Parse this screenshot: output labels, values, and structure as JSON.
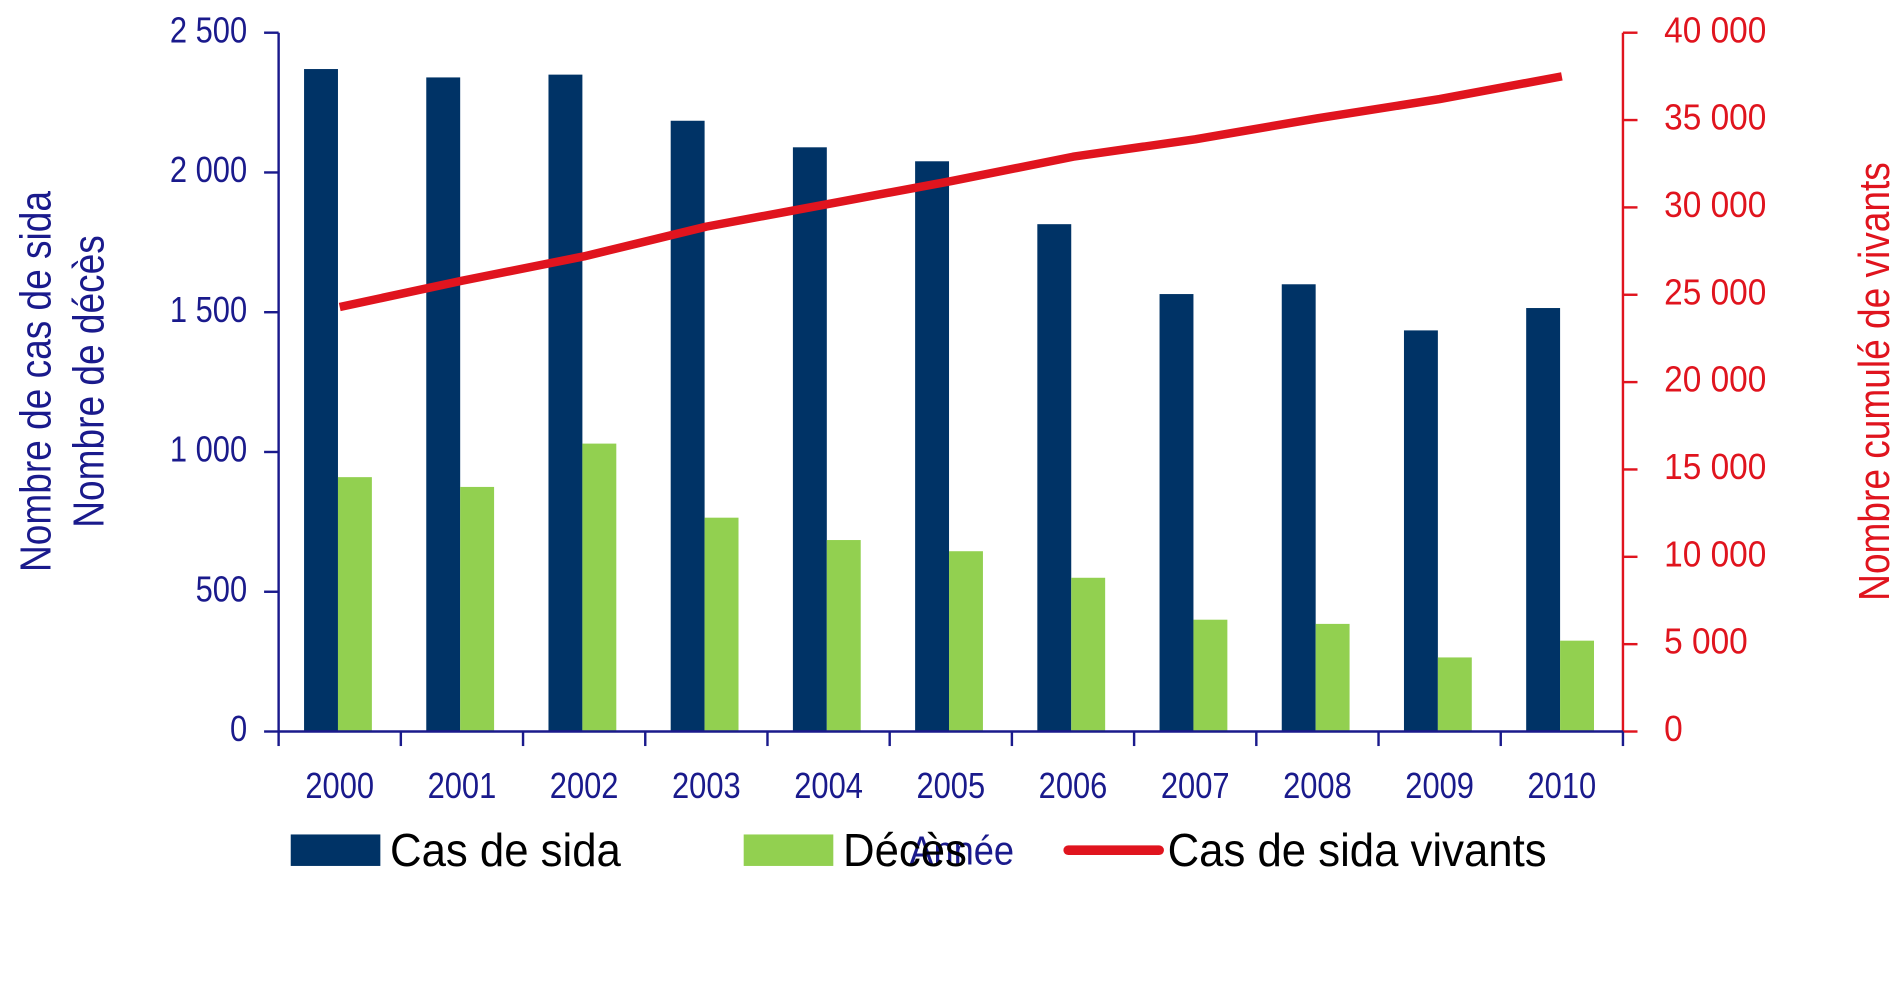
{
  "chart_data": {
    "type": "bar",
    "categories": [
      "2000",
      "2001",
      "2002",
      "2003",
      "2004",
      "2005",
      "2006",
      "2007",
      "2008",
      "2009",
      "2010"
    ],
    "x_label": "Année",
    "y_label": [
      "Nombre de cas de sida",
      "Nombre de décès"
    ],
    "y2_label": "Nombre cumulé de vivants",
    "ylim": [
      0,
      2500
    ],
    "yticks": [
      0,
      500,
      {
        "value": 1000,
        "label": "1 000"
      },
      {
        "value": 1500,
        "label": "1 500"
      },
      {
        "value": 2000,
        "label": "2 000"
      },
      {
        "value": 2500,
        "label": "2 500"
      }
    ],
    "y2lim": [
      0,
      40000
    ],
    "y2ticks": [
      0,
      {
        "value": 5000,
        "label": "5 000"
      },
      {
        "value": 10000,
        "label": "10 000"
      },
      {
        "value": 15000,
        "label": "15 000"
      },
      {
        "value": 20000,
        "label": "20 000"
      },
      {
        "value": 25000,
        "label": "25 000"
      },
      {
        "value": 30000,
        "label": "30 000"
      },
      {
        "value": 35000,
        "label": "35 000"
      },
      {
        "value": 40000,
        "label": "40 000"
      }
    ],
    "series": [
      {
        "name": "Cas de sida",
        "type": "bar",
        "color": "#003366",
        "values": [
          2370,
          2340,
          2350,
          2185,
          2090,
          2040,
          1815,
          1565,
          1600,
          1435,
          1515
        ]
      },
      {
        "name": "Décès",
        "type": "bar",
        "color": "#92d050",
        "values": [
          910,
          875,
          1030,
          765,
          685,
          645,
          550,
          400,
          385,
          265,
          325
        ]
      },
      {
        "name": "Cas de sida vivants",
        "type": "line",
        "axis": "y2",
        "color": "#e0141e",
        "values": [
          24300,
          25800,
          27200,
          28900,
          30200,
          31500,
          32900,
          33900,
          35100,
          36200,
          37500
        ]
      }
    ]
  }
}
